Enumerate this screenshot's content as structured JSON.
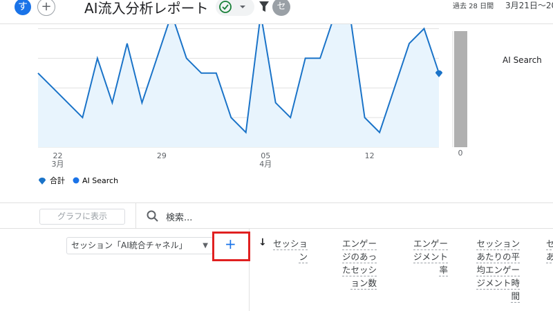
{
  "header": {
    "avatar": "す",
    "add": "+",
    "title": "AI流入分析レポート",
    "user_badge": "セ",
    "range_label": "過去 28 日間",
    "range_dates": "3月21日～20"
  },
  "chart": {
    "type": "line",
    "categories": [
      null,
      "22",
      null,
      null,
      null,
      null,
      null,
      null,
      "29",
      null,
      null,
      null,
      null,
      null,
      null,
      "05",
      null,
      null,
      null,
      null,
      null,
      null,
      "12",
      null,
      null,
      null,
      null,
      null
    ],
    "months": [
      null,
      "3月",
      null,
      null,
      null,
      null,
      null,
      null,
      null,
      null,
      null,
      null,
      null,
      null,
      null,
      "4月",
      null,
      null,
      null,
      null,
      null,
      null,
      null,
      null,
      null,
      null,
      null,
      null
    ],
    "values": [
      2.5,
      2,
      1.5,
      1,
      3,
      1.5,
      3.5,
      1.5,
      3,
      4.5,
      3,
      2.5,
      2.5,
      1,
      0.5,
      4.5,
      1.5,
      1,
      3,
      3,
      4.5,
      4.5,
      1,
      0.5,
      2,
      3.5,
      4,
      2.5
    ],
    "ylim": [
      0,
      4.15
    ],
    "gridlines": [
      1,
      2,
      3,
      4
    ],
    "color": "#1a73c8",
    "fill": "#e8f4fd",
    "side_label": "AI Search",
    "side_axis": "0",
    "legend": [
      "合計",
      "AI Search"
    ]
  },
  "toolbar": {
    "plot_button": "グラフに表示",
    "search": "検索..."
  },
  "table": {
    "dimension": "セッション「AI統合チャネル」",
    "add": "+",
    "columns": [
      [
        "セッショ",
        "ン"
      ],
      [
        "エンゲー",
        "ジのあっ",
        "たセッシ",
        "ョン数"
      ],
      [
        "エンゲー",
        "ジメント",
        "率"
      ],
      [
        "セッション",
        "あたりの平",
        "均エンゲー",
        "ジメント時",
        "間"
      ],
      [
        "セ",
        "あ"
      ]
    ]
  }
}
